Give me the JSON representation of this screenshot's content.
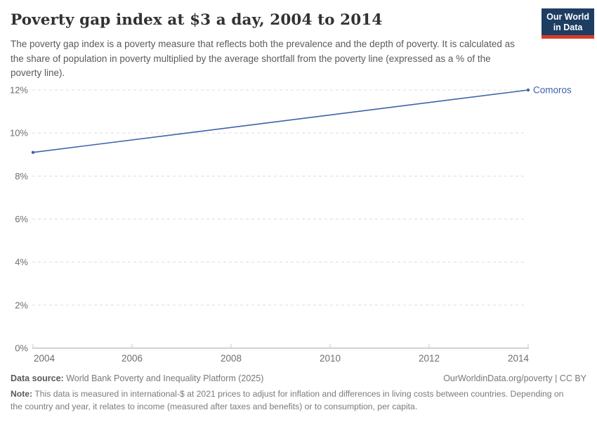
{
  "header": {
    "title": "Poverty gap index at $3 a day, 2004 to 2014",
    "subtitle": "The poverty gap index is a poverty measure that reflects both the prevalence and the depth of poverty. It is calculated as the share of population in poverty multiplied by the average shortfall from the poverty line (expressed as a % of the poverty line).",
    "logo": {
      "line1": "Our World",
      "line2": "in Data",
      "bg_color": "#1d3d63",
      "accent_color": "#d93a2b"
    }
  },
  "chart_data": {
    "type": "line",
    "title": "Poverty gap index at $3 a day, 2004 to 2014",
    "xlabel": "",
    "ylabel": "",
    "xlim": [
      2004,
      2014
    ],
    "ylim": [
      0,
      12
    ],
    "x_ticks": [
      "2004",
      "2006",
      "2008",
      "2010",
      "2012",
      "2014"
    ],
    "y_ticks": [
      "0%",
      "2%",
      "4%",
      "6%",
      "8%",
      "10%",
      "12%"
    ],
    "grid": "horizontal-dashed",
    "legend_position": "end-of-line-label",
    "series": [
      {
        "name": "Comoros",
        "color": "#3d62ad",
        "x": [
          2004,
          2014
        ],
        "values": [
          9.1,
          12
        ]
      }
    ],
    "colors": {
      "gridline": "#dcdcdc",
      "axis_line": "#a5a5a5",
      "tick_label": "#6e6e73"
    }
  },
  "footer": {
    "datasource_label": "Data source:",
    "datasource_text": " World Bank Poverty and Inequality Platform (2025)",
    "rights": "OurWorldinData.org/poverty | CC BY",
    "note_label": "Note:",
    "note_text": " This data is measured in international-$ at 2021 prices to adjust for inflation and differences in living costs between countries. Depending on the country and year, it relates to income (measured after taxes and benefits) or to consumption, per capita."
  }
}
